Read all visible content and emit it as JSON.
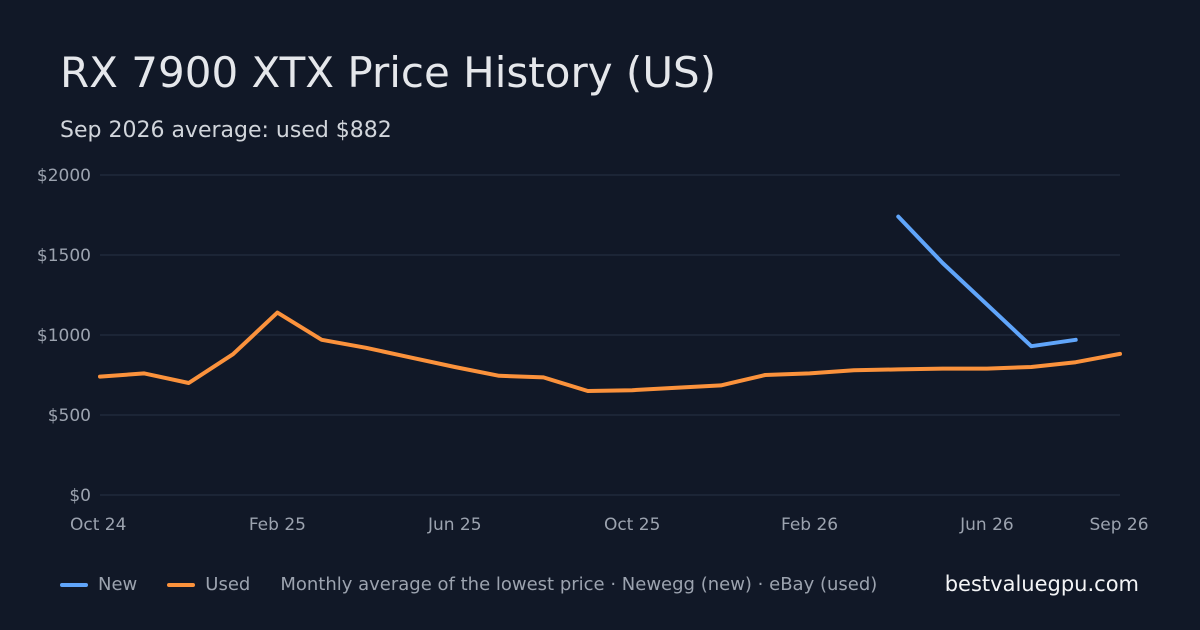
{
  "title": "RX 7900 XTX Price History (US)",
  "subtitle": "Sep 2026 average: used $882",
  "legend": {
    "items": [
      {
        "name": "New",
        "color": "#60a5fa"
      },
      {
        "name": "Used",
        "color": "#fb923c"
      }
    ],
    "note": "Monthly average of the lowest price · Newegg (new) · eBay (used)"
  },
  "brand": "bestvaluegpu.com",
  "chart_data": {
    "type": "line",
    "x": [
      "2024-10",
      "2024-11",
      "2024-12",
      "2025-01",
      "2025-02",
      "2025-03",
      "2025-04",
      "2025-05",
      "2025-06",
      "2025-07",
      "2025-08",
      "2025-09",
      "2025-10",
      "2025-11",
      "2025-12",
      "2026-01",
      "2026-02",
      "2026-03",
      "2026-04",
      "2026-05",
      "2026-06",
      "2026-07",
      "2026-08",
      "2026-09"
    ],
    "x_tick_labels": [
      {
        "x": "2024-10",
        "label": "Oct 24"
      },
      {
        "x": "2025-02",
        "label": "Feb 25"
      },
      {
        "x": "2025-06",
        "label": "Jun 25"
      },
      {
        "x": "2025-10",
        "label": "Oct 25"
      },
      {
        "x": "2026-02",
        "label": "Feb 26"
      },
      {
        "x": "2026-06",
        "label": "Jun 26"
      },
      {
        "x": "2026-09",
        "label": "Sep 26"
      }
    ],
    "y_ticks": [
      0,
      500,
      1000,
      1500,
      2000
    ],
    "y_tick_labels": [
      "$0",
      "$500",
      "$1000",
      "$1500",
      "$2000"
    ],
    "ylim": [
      0,
      2000
    ],
    "grid": true,
    "legend_position": "bottom-left",
    "series": [
      {
        "name": "New",
        "color": "#60a5fa",
        "values": [
          null,
          null,
          null,
          null,
          null,
          null,
          null,
          null,
          null,
          null,
          null,
          null,
          null,
          null,
          null,
          null,
          null,
          null,
          1740,
          1450,
          1190,
          930,
          970,
          null
        ]
      },
      {
        "name": "Used",
        "color": "#fb923c",
        "values": [
          740,
          760,
          700,
          880,
          1140,
          970,
          920,
          860,
          800,
          745,
          735,
          650,
          655,
          670,
          685,
          750,
          760,
          780,
          785,
          790,
          790,
          800,
          830,
          882
        ]
      }
    ]
  }
}
